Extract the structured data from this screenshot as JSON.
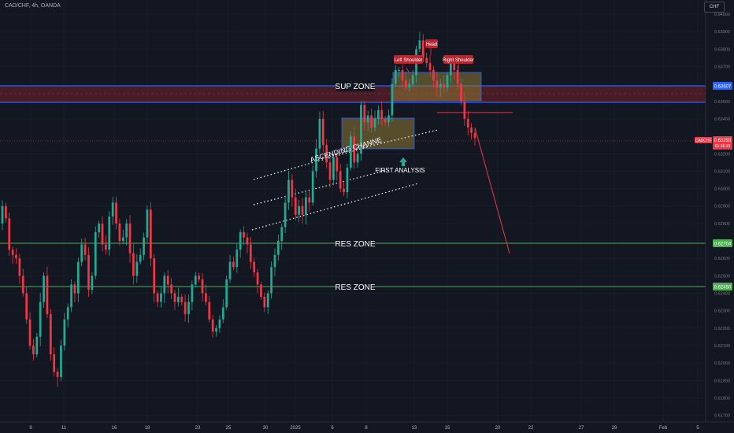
{
  "header": {
    "title": "CAD/CHF, 4h, OANDA",
    "currency": "CHF"
  },
  "price_axis": {
    "ticks": [
      "0.64000",
      "0.63900",
      "0.63800",
      "0.63700",
      "0.63500",
      "0.63400",
      "0.63200",
      "0.63100",
      "0.63000",
      "0.62900",
      "0.62800",
      "0.62600",
      "0.62500",
      "0.62400",
      "0.62300",
      "0.62200",
      "0.62100",
      "0.62000",
      "0.61900",
      "0.61800",
      "0.61700"
    ],
    "sup_price": "0.63607",
    "current_symbol": "CADCHF",
    "current_price": "0.63293",
    "countdown": "01:15:19",
    "res_price_1": "0.62704",
    "res_price_2": "0.62450"
  },
  "time_axis": {
    "ticks": [
      "9",
      "11",
      "16",
      "18",
      "23",
      "25",
      "30",
      "2025",
      "6",
      "8",
      "13",
      "15",
      "20",
      "22",
      "27",
      "29",
      "Feb",
      "5"
    ]
  },
  "annotations": {
    "sup_zone": "SUP ZONE",
    "res_zone_1": "RES ZONE",
    "res_zone_2": "RES ZONE",
    "channel": "ASCENDING CHANNE",
    "first_analysis": "FIRST ANALYSIS",
    "left_shoulder": "Left Shoulder",
    "head": "Head",
    "right_shoulder": "Right Shoulder"
  },
  "colors": {
    "background": "#131722",
    "bull": "#22ab94",
    "bear": "#f23645",
    "support_line": "#2962ff",
    "support_fill": "#5b1f2a",
    "resistance_line": "#4caf50",
    "shoulder_label": "#b22833",
    "projection": "#f23645",
    "box_fill": "#8d7a35"
  },
  "chart_data": {
    "type": "candlestick",
    "ticker": "CAD/CHF",
    "timeframe": "4h",
    "broker": "OANDA",
    "ylim": [
      0.6168,
      0.6405
    ],
    "closes": [
      0.629,
      0.6283,
      0.6265,
      0.6262,
      0.626,
      0.625,
      0.624,
      0.6225,
      0.621,
      0.6205,
      0.6215,
      0.6235,
      0.625,
      0.6228,
      0.6205,
      0.6195,
      0.6192,
      0.621,
      0.6225,
      0.6232,
      0.6245,
      0.624,
      0.6258,
      0.6268,
      0.6262,
      0.6242,
      0.625,
      0.6275,
      0.628,
      0.6268,
      0.6265,
      0.6284,
      0.6292,
      0.628,
      0.627,
      0.6272,
      0.628,
      0.6263,
      0.625,
      0.6258,
      0.6262,
      0.6272,
      0.6288,
      0.626,
      0.624,
      0.6235,
      0.624,
      0.625,
      0.6245,
      0.624,
      0.6235,
      0.6238,
      0.6235,
      0.6228,
      0.6235,
      0.6245,
      0.625,
      0.6248,
      0.624,
      0.6235,
      0.6225,
      0.6218,
      0.622,
      0.6225,
      0.6232,
      0.6248,
      0.6258,
      0.6255,
      0.6265,
      0.6275,
      0.6272,
      0.6268,
      0.6258,
      0.6252,
      0.6245,
      0.6238,
      0.6232,
      0.624,
      0.6255,
      0.6262,
      0.627,
      0.6278,
      0.6292,
      0.6305,
      0.6295,
      0.6285,
      0.629,
      0.6285,
      0.6295,
      0.6292,
      0.631,
      0.6323,
      0.634,
      0.6325,
      0.6315,
      0.6305,
      0.6318,
      0.631,
      0.63,
      0.6298,
      0.6312,
      0.633,
      0.6315,
      0.632,
      0.6348,
      0.6338,
      0.6342,
      0.6335,
      0.634,
      0.6345,
      0.634,
      0.6338,
      0.6342,
      0.636,
      0.6368,
      0.6368,
      0.6362,
      0.6358,
      0.636,
      0.6365,
      0.638,
      0.6385,
      0.6375,
      0.6372,
      0.6368,
      0.6362,
      0.6358,
      0.636,
      0.6358,
      0.6365,
      0.6372,
      0.6368,
      0.636,
      0.635,
      0.634,
      0.6335,
      0.6332,
      0.6329
    ],
    "projection_target": 0.6262,
    "levels": {
      "sup_zone": [
        0.63545,
        0.63625
      ],
      "res_zone_1": 0.62704,
      "res_zone_2": 0.6245,
      "neckline": 0.6346
    }
  }
}
